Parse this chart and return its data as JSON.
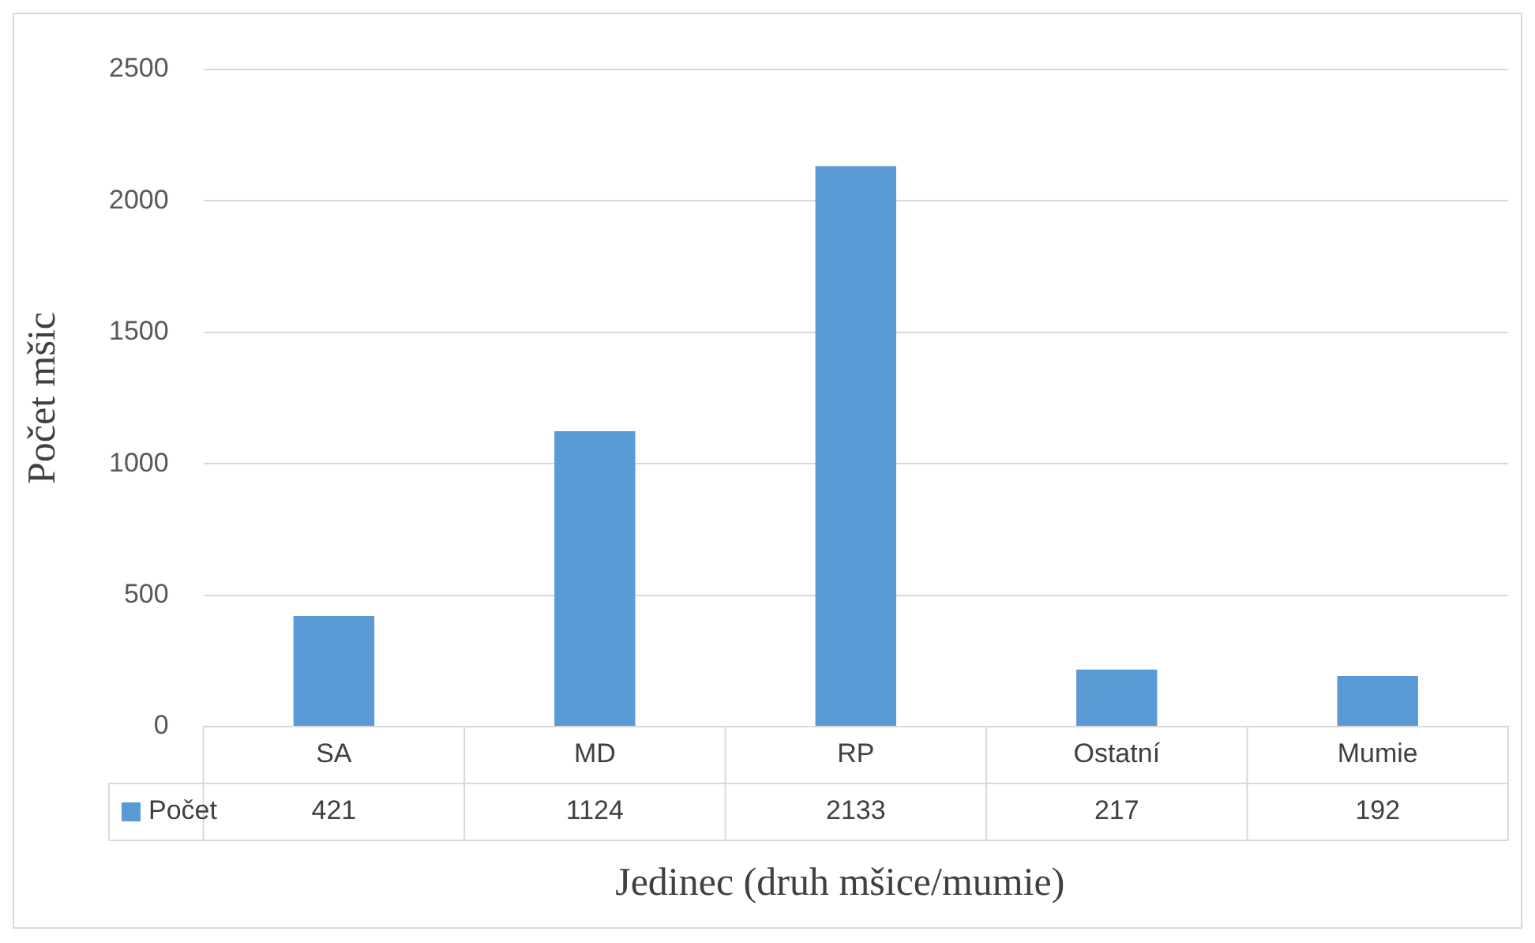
{
  "chart_data": {
    "type": "bar",
    "xlabel": "Jedinec (druh mšice/mumie)",
    "ylabel": "Počet mšic",
    "categories": [
      "SA",
      "MD",
      "RP",
      "Ostatní",
      "Mumie"
    ],
    "series": [
      {
        "name": "Počet",
        "color": "#5b9bd5",
        "values": [
          421,
          1124,
          2133,
          217,
          192
        ]
      }
    ],
    "ylim": [
      0,
      2500
    ],
    "yticks": [
      0,
      500,
      1000,
      1500,
      2000,
      2500
    ],
    "grid": "y",
    "legend": "bottom",
    "data_labels": true
  }
}
